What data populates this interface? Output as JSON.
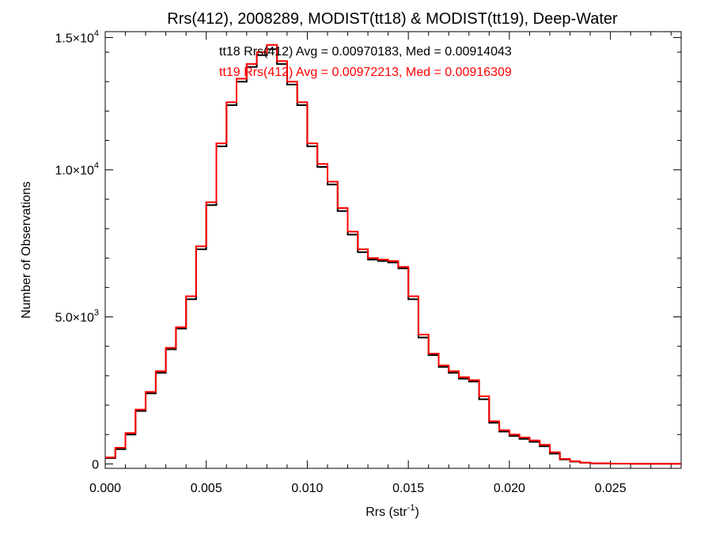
{
  "chart_data": {
    "type": "line",
    "step": true,
    "title": "Rrs(412), 2008289, MODIST(tt18) & MODIST(tt19), Deep-Water",
    "xlabel": "Rrs (str",
    "xlabel_sup": "-1",
    "xlabel_end": ")",
    "ylabel": "Number of Observations",
    "xlim": [
      0.0,
      0.0285
    ],
    "ylim": [
      -150,
      14700
    ],
    "grid": false,
    "x_ticks": [
      {
        "value": 0.0,
        "label": "0.000"
      },
      {
        "value": 0.005,
        "label": "0.005"
      },
      {
        "value": 0.01,
        "label": "0.010"
      },
      {
        "value": 0.015,
        "label": "0.015"
      },
      {
        "value": 0.02,
        "label": "0.020"
      },
      {
        "value": 0.025,
        "label": "0.025"
      }
    ],
    "y_ticks": [
      {
        "value": 0,
        "label": "0",
        "exp": ""
      },
      {
        "value": 5000,
        "label": "5.0×10",
        "exp": "3"
      },
      {
        "value": 10000,
        "label": "1.0×10",
        "exp": "4"
      },
      {
        "value": 14500,
        "label": "1.5×10",
        "exp": "4"
      }
    ],
    "annotations": [
      {
        "text": "tt18 Rrs(412) Avg = 0.00970183, Med = 0.00914043",
        "color": "#000000"
      },
      {
        "text": "tt19 Rrs(412) Avg = 0.00972213, Med = 0.00916309",
        "color": "#ff0000"
      }
    ],
    "x": [
      0.0,
      0.0005,
      0.001,
      0.0015,
      0.002,
      0.0025,
      0.003,
      0.0035,
      0.004,
      0.0045,
      0.005,
      0.0055,
      0.006,
      0.0065,
      0.007,
      0.0075,
      0.008,
      0.0085,
      0.009,
      0.0095,
      0.01,
      0.0105,
      0.011,
      0.0115,
      0.012,
      0.0125,
      0.013,
      0.0135,
      0.014,
      0.0145,
      0.015,
      0.0155,
      0.016,
      0.0165,
      0.017,
      0.0175,
      0.018,
      0.0185,
      0.019,
      0.0195,
      0.02,
      0.0205,
      0.021,
      0.0215,
      0.022,
      0.0225,
      0.023,
      0.0235,
      0.024,
      0.025,
      0.026,
      0.027,
      0.028
    ],
    "series": [
      {
        "name": "tt18",
        "color": "#000000",
        "values": [
          200,
          500,
          1000,
          1800,
          2400,
          3100,
          3900,
          4600,
          5600,
          7300,
          8800,
          10800,
          12200,
          13000,
          13500,
          13900,
          14100,
          13600,
          12900,
          12200,
          10800,
          10100,
          9500,
          8600,
          7800,
          7200,
          6950,
          6900,
          6850,
          6650,
          5600,
          4300,
          3700,
          3300,
          3100,
          2900,
          2800,
          2200,
          1400,
          1100,
          950,
          850,
          750,
          600,
          350,
          150,
          80,
          40,
          20,
          10,
          5,
          3,
          2
        ]
      },
      {
        "name": "tt19",
        "color": "#ff0000",
        "values": [
          220,
          550,
          1050,
          1850,
          2450,
          3150,
          3950,
          4650,
          5700,
          7400,
          8900,
          10900,
          12300,
          13100,
          13600,
          14000,
          14250,
          13700,
          13000,
          12300,
          10900,
          10200,
          9600,
          8700,
          7900,
          7300,
          7000,
          6950,
          6900,
          6700,
          5700,
          4400,
          3750,
          3350,
          3150,
          2950,
          2850,
          2300,
          1450,
          1150,
          1000,
          900,
          800,
          650,
          400,
          170,
          90,
          45,
          22,
          11,
          6,
          3,
          2
        ]
      }
    ]
  }
}
